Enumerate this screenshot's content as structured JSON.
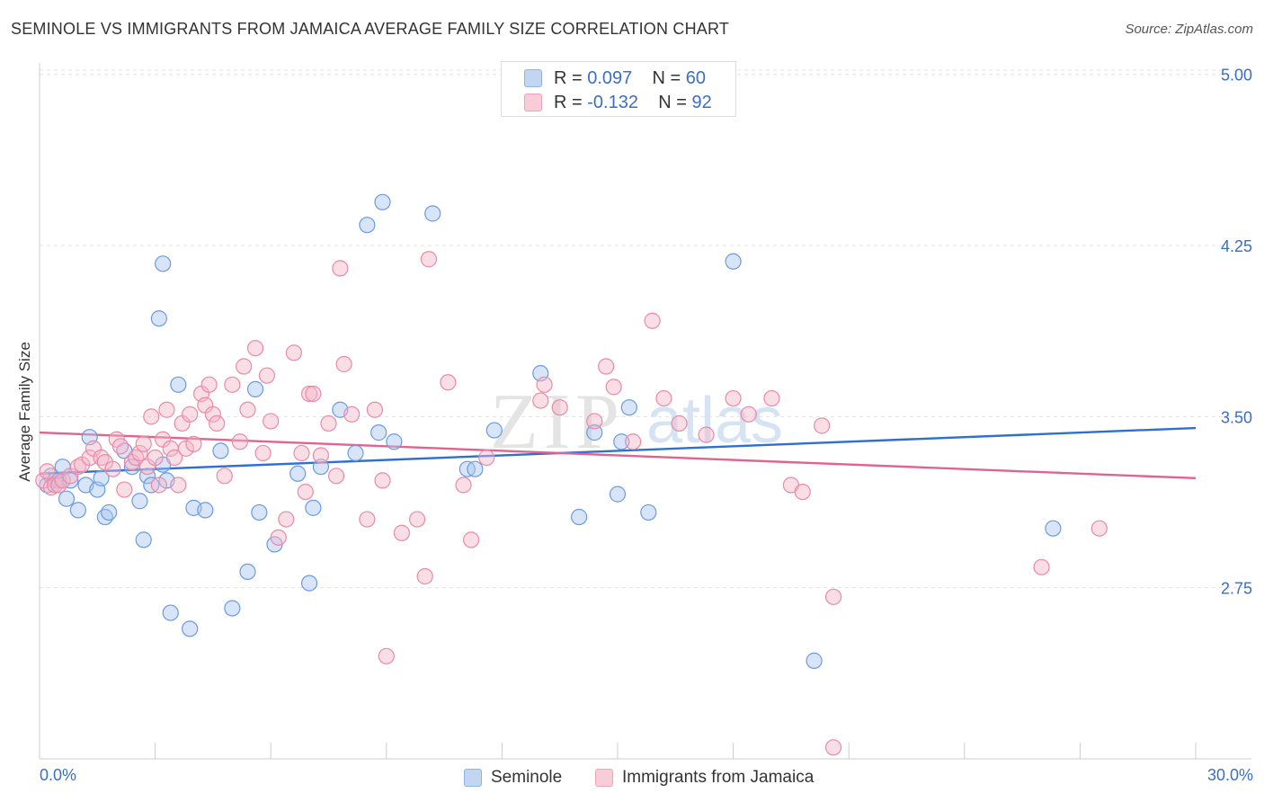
{
  "title": "SEMINOLE VS IMMIGRANTS FROM JAMAICA AVERAGE FAMILY SIZE CORRELATION CHART",
  "source": "Source: ZipAtlas.com",
  "watermark": {
    "zip": "ZIP",
    "atlas": "atlas"
  },
  "stats": [
    {
      "r_label": "R = ",
      "r_value": "0.097",
      "n_label": "N = ",
      "n_value": "60",
      "color": "#a9c6ef"
    },
    {
      "r_label": "R = ",
      "r_value": "-0.132",
      "n_label": "N = ",
      "n_value": "92",
      "color": "#f5b6c8"
    }
  ],
  "chart_data": {
    "type": "scatter",
    "title": "SEMINOLE VS IMMIGRANTS FROM JAMAICA AVERAGE FAMILY SIZE CORRELATION CHART",
    "xlabel": "",
    "ylabel": "Average Family Size",
    "xlim": [
      0,
      30
    ],
    "ylim": [
      2.0,
      5.05
    ],
    "x_tick_labels": [
      "0.0%",
      "30.0%"
    ],
    "y_ticks": [
      2.75,
      3.5,
      4.25,
      5.0
    ],
    "y_tick_labels": [
      "2.75",
      "3.50",
      "4.25",
      "5.00"
    ],
    "grid": true,
    "legend_position": "bottom",
    "series": [
      {
        "name": "Seminole",
        "color": "#a9c6ef",
        "stroke": "#6a9be0",
        "trend_color": "#2f6fcf",
        "trend": [
          [
            0,
            3.25
          ],
          [
            30,
            3.45
          ]
        ],
        "points": [
          [
            0.2,
            3.2
          ],
          [
            0.3,
            3.24
          ],
          [
            0.4,
            3.22
          ],
          [
            0.5,
            3.22
          ],
          [
            0.6,
            3.28
          ],
          [
            0.7,
            3.14
          ],
          [
            0.8,
            3.22
          ],
          [
            1.0,
            3.09
          ],
          [
            1.2,
            3.2
          ],
          [
            1.3,
            3.41
          ],
          [
            1.5,
            3.18
          ],
          [
            1.6,
            3.23
          ],
          [
            1.7,
            3.06
          ],
          [
            1.8,
            3.08
          ],
          [
            2.2,
            3.35
          ],
          [
            2.4,
            3.28
          ],
          [
            2.6,
            3.13
          ],
          [
            2.7,
            2.96
          ],
          [
            2.8,
            3.24
          ],
          [
            2.9,
            3.2
          ],
          [
            3.1,
            3.93
          ],
          [
            3.2,
            3.29
          ],
          [
            3.2,
            4.17
          ],
          [
            3.3,
            3.22
          ],
          [
            3.4,
            2.64
          ],
          [
            3.6,
            3.64
          ],
          [
            3.9,
            2.57
          ],
          [
            4.0,
            3.1
          ],
          [
            4.3,
            3.09
          ],
          [
            4.7,
            3.35
          ],
          [
            5.0,
            2.66
          ],
          [
            5.4,
            2.82
          ],
          [
            5.6,
            3.62
          ],
          [
            5.7,
            3.08
          ],
          [
            6.1,
            2.94
          ],
          [
            6.7,
            3.25
          ],
          [
            7.0,
            2.77
          ],
          [
            7.1,
            3.1
          ],
          [
            7.3,
            3.28
          ],
          [
            7.8,
            3.53
          ],
          [
            8.2,
            3.34
          ],
          [
            8.5,
            4.34
          ],
          [
            8.8,
            3.43
          ],
          [
            8.9,
            4.44
          ],
          [
            9.2,
            3.39
          ],
          [
            10.2,
            4.39
          ],
          [
            11.1,
            3.27
          ],
          [
            11.3,
            3.27
          ],
          [
            11.8,
            3.44
          ],
          [
            13.0,
            3.69
          ],
          [
            14.0,
            3.06
          ],
          [
            14.4,
            3.43
          ],
          [
            15.0,
            3.16
          ],
          [
            15.1,
            3.39
          ],
          [
            15.3,
            3.54
          ],
          [
            15.8,
            3.08
          ],
          [
            18.0,
            4.18
          ],
          [
            20.1,
            2.43
          ],
          [
            26.3,
            3.01
          ]
        ]
      },
      {
        "name": "Immigrants from Jamaica",
        "color": "#f5b6c8",
        "stroke": "#e98aa8",
        "trend_color": "#e0648e",
        "trend": [
          [
            0,
            3.43
          ],
          [
            30,
            3.23
          ]
        ],
        "points": [
          [
            0.1,
            3.22
          ],
          [
            0.2,
            3.26
          ],
          [
            0.3,
            3.19
          ],
          [
            0.4,
            3.2
          ],
          [
            0.5,
            3.2
          ],
          [
            0.6,
            3.22
          ],
          [
            0.8,
            3.24
          ],
          [
            1.0,
            3.28
          ],
          [
            1.1,
            3.29
          ],
          [
            1.3,
            3.32
          ],
          [
            1.4,
            3.36
          ],
          [
            1.6,
            3.32
          ],
          [
            1.7,
            3.3
          ],
          [
            1.9,
            3.27
          ],
          [
            2.0,
            3.4
          ],
          [
            2.1,
            3.37
          ],
          [
            2.2,
            3.18
          ],
          [
            2.4,
            3.3
          ],
          [
            2.5,
            3.32
          ],
          [
            2.6,
            3.34
          ],
          [
            2.7,
            3.38
          ],
          [
            2.8,
            3.28
          ],
          [
            2.9,
            3.5
          ],
          [
            3.0,
            3.32
          ],
          [
            3.1,
            3.2
          ],
          [
            3.2,
            3.4
          ],
          [
            3.3,
            3.53
          ],
          [
            3.4,
            3.36
          ],
          [
            3.5,
            3.32
          ],
          [
            3.6,
            3.2
          ],
          [
            3.7,
            3.47
          ],
          [
            3.8,
            3.36
          ],
          [
            3.9,
            3.51
          ],
          [
            4.0,
            3.38
          ],
          [
            4.2,
            3.6
          ],
          [
            4.3,
            3.55
          ],
          [
            4.4,
            3.64
          ],
          [
            4.5,
            3.51
          ],
          [
            4.6,
            3.47
          ],
          [
            4.8,
            3.24
          ],
          [
            5.0,
            3.64
          ],
          [
            5.2,
            3.39
          ],
          [
            5.3,
            3.72
          ],
          [
            5.4,
            3.53
          ],
          [
            5.6,
            3.8
          ],
          [
            5.8,
            3.34
          ],
          [
            5.9,
            3.68
          ],
          [
            6.0,
            3.48
          ],
          [
            6.2,
            2.97
          ],
          [
            6.4,
            3.05
          ],
          [
            6.6,
            3.78
          ],
          [
            6.8,
            3.34
          ],
          [
            6.9,
            3.17
          ],
          [
            7.0,
            3.6
          ],
          [
            7.1,
            3.6
          ],
          [
            7.3,
            3.33
          ],
          [
            7.5,
            3.47
          ],
          [
            7.7,
            3.24
          ],
          [
            7.8,
            4.15
          ],
          [
            7.9,
            3.73
          ],
          [
            8.1,
            3.51
          ],
          [
            8.5,
            3.05
          ],
          [
            8.7,
            3.53
          ],
          [
            8.9,
            3.22
          ],
          [
            9.0,
            2.45
          ],
          [
            9.4,
            2.99
          ],
          [
            9.8,
            3.05
          ],
          [
            10.0,
            2.8
          ],
          [
            10.1,
            4.19
          ],
          [
            10.6,
            3.65
          ],
          [
            11.0,
            3.2
          ],
          [
            11.2,
            2.96
          ],
          [
            11.6,
            3.32
          ],
          [
            13.0,
            3.57
          ],
          [
            13.1,
            3.64
          ],
          [
            13.5,
            3.54
          ],
          [
            14.4,
            3.48
          ],
          [
            14.7,
            3.72
          ],
          [
            14.9,
            3.63
          ],
          [
            15.4,
            3.39
          ],
          [
            15.9,
            3.92
          ],
          [
            16.2,
            3.58
          ],
          [
            16.6,
            3.47
          ],
          [
            17.3,
            3.42
          ],
          [
            18.0,
            3.58
          ],
          [
            18.4,
            3.51
          ],
          [
            19.0,
            3.58
          ],
          [
            19.5,
            3.2
          ],
          [
            19.8,
            3.17
          ],
          [
            20.3,
            3.46
          ],
          [
            20.6,
            2.71
          ],
          [
            20.6,
            2.05
          ],
          [
            26.0,
            2.84
          ],
          [
            27.5,
            3.01
          ]
        ]
      }
    ]
  }
}
